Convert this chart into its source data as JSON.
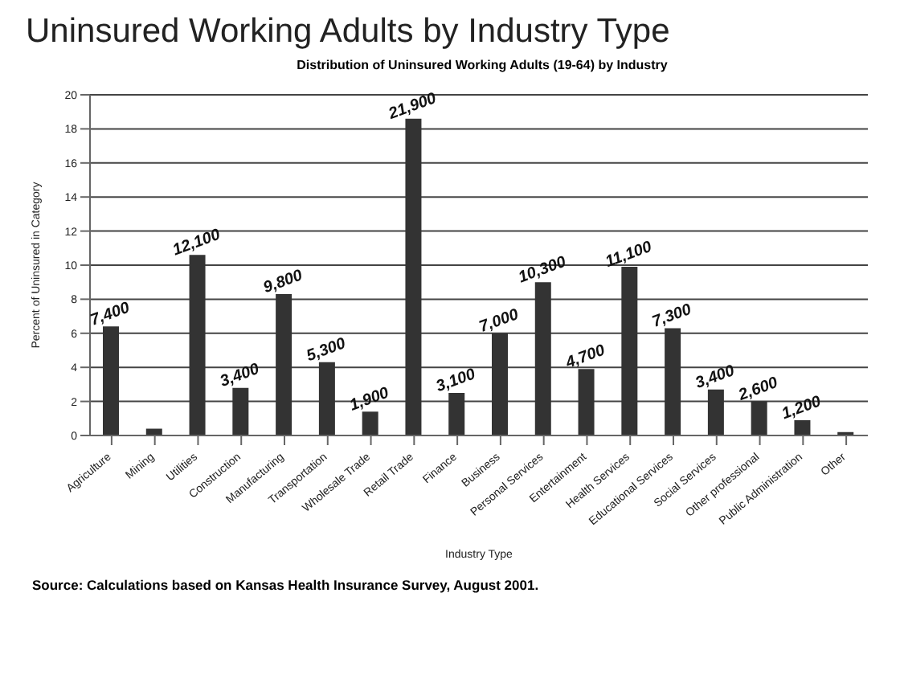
{
  "chart_data": {
    "type": "bar",
    "title": "Uninsured Working Adults by Industry Type",
    "subtitle": "Distribution of Uninsured Working Adults (19-64) by Industry",
    "xlabel": "Industry Type",
    "ylabel": "Percent of Uninsured in Category",
    "categories": [
      "Agriculture",
      "Mining",
      "Utilities",
      "Construction",
      "Manufacturing",
      "Transportation",
      "Wholesale Trade",
      "Retail Trade",
      "Finance",
      "Business",
      "Personal Services",
      "Entertainment",
      "Health Services",
      "Educational Services",
      "Social Services",
      "Other professional",
      "Public Administration",
      "Other"
    ],
    "values": [
      6.4,
      0.4,
      10.6,
      2.8,
      8.3,
      4.3,
      1.4,
      18.6,
      2.5,
      6.0,
      9.0,
      3.9,
      9.9,
      6.3,
      2.7,
      2.0,
      0.9,
      0.2
    ],
    "color": "#333333",
    "ylim": [
      0,
      20
    ],
    "yticks": [
      0,
      2,
      4,
      6,
      8,
      10,
      12,
      14,
      16,
      18,
      20
    ],
    "grid": "y",
    "annotations": [
      {
        "text": "7,400",
        "x": "Agriculture",
        "y": 6.4
      },
      {
        "text": "12,100",
        "x": "Utilities",
        "y": 10.6
      },
      {
        "text": "3,400",
        "x": "Construction",
        "y": 2.8
      },
      {
        "text": "9,800",
        "x": "Manufacturing",
        "y": 8.3
      },
      {
        "text": "5,300",
        "x": "Transportation",
        "y": 4.3
      },
      {
        "text": "1,900",
        "x": "Wholesale Trade",
        "y": 1.4
      },
      {
        "text": "21,900",
        "x": "Retail Trade",
        "y": 18.6
      },
      {
        "text": "3,100",
        "x": "Finance",
        "y": 2.5
      },
      {
        "text": "7,000",
        "x": "Business",
        "y": 6.0
      },
      {
        "text": "10,300",
        "x": "Personal Services",
        "y": 9.0
      },
      {
        "text": "4,700",
        "x": "Entertainment",
        "y": 3.9
      },
      {
        "text": "11,100",
        "x": "Health Services",
        "y": 9.9
      },
      {
        "text": "7,300",
        "x": "Educational Services",
        "y": 6.3
      },
      {
        "text": "3,400",
        "x": "Social Services",
        "y": 2.7
      },
      {
        "text": "2,600",
        "x": "Other professional",
        "y": 2.0
      },
      {
        "text": "1,200",
        "x": "Public Administration",
        "y": 0.9
      },
      "Source: Calculations based on Kansas Health Insurance Survey, August 2001."
    ]
  }
}
